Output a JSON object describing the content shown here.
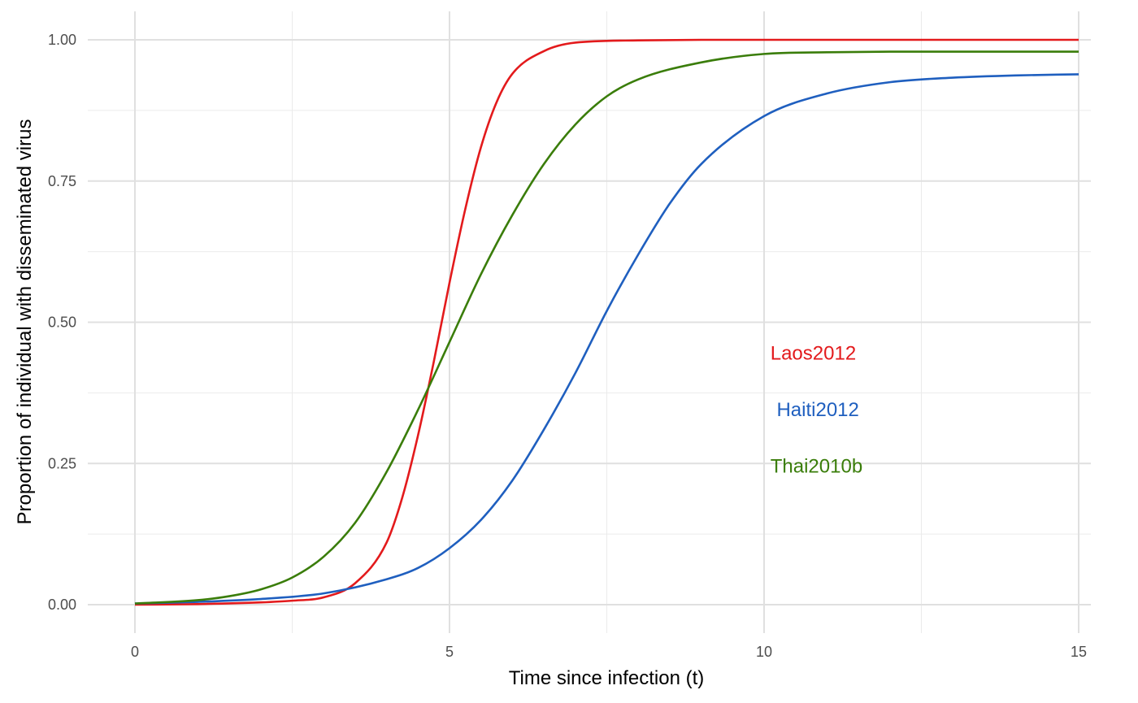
{
  "chart_data": {
    "type": "line",
    "title": "",
    "xlabel": "Time since infection (t)",
    "ylabel": "Proportion of individual with disseminated virus",
    "xlim": [
      0,
      15
    ],
    "ylim": [
      0,
      1
    ],
    "x_ticks": [
      0,
      5,
      10,
      15
    ],
    "x_tick_labels": [
      "0",
      "5",
      "10",
      "15"
    ],
    "y_ticks": [
      0,
      0.25,
      0.5,
      0.75,
      1
    ],
    "y_tick_labels": [
      "0.00",
      "0.25",
      "0.50",
      "0.75",
      "1.00"
    ],
    "grid": true,
    "legend": "inline labels",
    "series": [
      {
        "name": "Laos2012",
        "color": "#e31a1c",
        "x": [
          0,
          1,
          2,
          2.5,
          3,
          3.5,
          4,
          4.25,
          4.5,
          4.75,
          5,
          5.25,
          5.5,
          5.75,
          6,
          6.5,
          7,
          8,
          9,
          10,
          12,
          15
        ],
        "y": [
          0,
          0.001,
          0.004,
          0.007,
          0.013,
          0.038,
          0.11,
          0.19,
          0.3,
          0.43,
          0.57,
          0.7,
          0.81,
          0.89,
          0.94,
          0.98,
          0.995,
          0.999,
          1,
          1,
          1,
          1
        ],
        "label_x": 10.1,
        "label_y": 0.445
      },
      {
        "name": "Haiti2012",
        "color": "#1f5fbf",
        "x": [
          0,
          1,
          2,
          3,
          4,
          4.5,
          5,
          5.5,
          6,
          6.5,
          7,
          7.5,
          8,
          8.5,
          9,
          10,
          11,
          12,
          13,
          14,
          15
        ],
        "y": [
          0.002,
          0.005,
          0.01,
          0.02,
          0.045,
          0.065,
          0.1,
          0.15,
          0.22,
          0.31,
          0.41,
          0.52,
          0.62,
          0.71,
          0.78,
          0.865,
          0.905,
          0.925,
          0.933,
          0.937,
          0.939
        ],
        "label_x": 10.2,
        "label_y": 0.345
      },
      {
        "name": "Thai2010b",
        "color": "#3a7d0a",
        "x": [
          0,
          1,
          1.5,
          2,
          2.5,
          3,
          3.5,
          4,
          4.5,
          5,
          5.5,
          6,
          6.5,
          7,
          7.5,
          8,
          9,
          10,
          11,
          12,
          15
        ],
        "y": [
          0.002,
          0.008,
          0.015,
          0.027,
          0.048,
          0.085,
          0.145,
          0.235,
          0.345,
          0.465,
          0.585,
          0.69,
          0.78,
          0.85,
          0.9,
          0.93,
          0.96,
          0.975,
          0.978,
          0.979,
          0.979
        ],
        "label_x": 10.1,
        "label_y": 0.245
      }
    ]
  }
}
